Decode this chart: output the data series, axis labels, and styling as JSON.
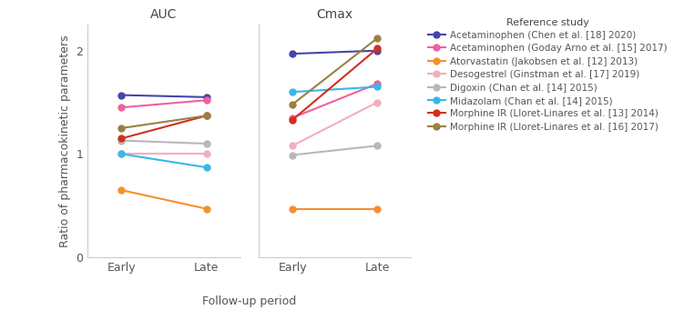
{
  "title_left": "AUC",
  "title_right": "Cmax",
  "xlabel": "Follow-up period",
  "ylabel": "Ratio of pharmacokinetic parameters",
  "xticks": [
    "Early",
    "Late"
  ],
  "ylim": [
    0,
    2.25
  ],
  "yticks": [
    0,
    1,
    2
  ],
  "series": [
    {
      "label": "Acetaminophen (Chen et al. [18] 2020)",
      "color": "#4444aa",
      "AUC": [
        1.57,
        1.55
      ],
      "Cmax": [
        1.97,
        2.0
      ]
    },
    {
      "label": "Acetaminophen (Goday Arno et al. [15] 2017)",
      "color": "#f060a0",
      "AUC": [
        1.45,
        1.52
      ],
      "Cmax": [
        1.35,
        1.68
      ]
    },
    {
      "label": "Atorvastatin (Jakobsen et al. [12] 2013)",
      "color": "#f59030",
      "AUC": [
        0.65,
        0.47
      ],
      "Cmax": [
        0.47,
        0.47
      ]
    },
    {
      "label": "Desogestrel (Ginstman et al. [17] 2019)",
      "color": "#f0b0bc",
      "AUC": [
        1.0,
        1.0
      ],
      "Cmax": [
        1.08,
        1.5
      ]
    },
    {
      "label": "Digoxin (Chan et al. [14] 2015)",
      "color": "#b8b8b8",
      "AUC": [
        1.13,
        1.1
      ],
      "Cmax": [
        0.99,
        1.08
      ]
    },
    {
      "label": "Midazolam (Chan et al. [14] 2015)",
      "color": "#38b8e8",
      "AUC": [
        1.0,
        0.87
      ],
      "Cmax": [
        1.6,
        1.65
      ]
    },
    {
      "label": "Morphine IR (Lloret-Linares et al. [13] 2014)",
      "color": "#d03020",
      "AUC": [
        1.15,
        1.37
      ],
      "Cmax": [
        1.33,
        2.02
      ]
    },
    {
      "label": "Morphine IR (Lloret-Linares et al. [16] 2017)",
      "color": "#9a8040",
      "AUC": [
        1.25,
        1.37
      ],
      "Cmax": [
        1.48,
        2.12
      ]
    }
  ],
  "legend_title": "Reference study",
  "background_color": "#ffffff"
}
